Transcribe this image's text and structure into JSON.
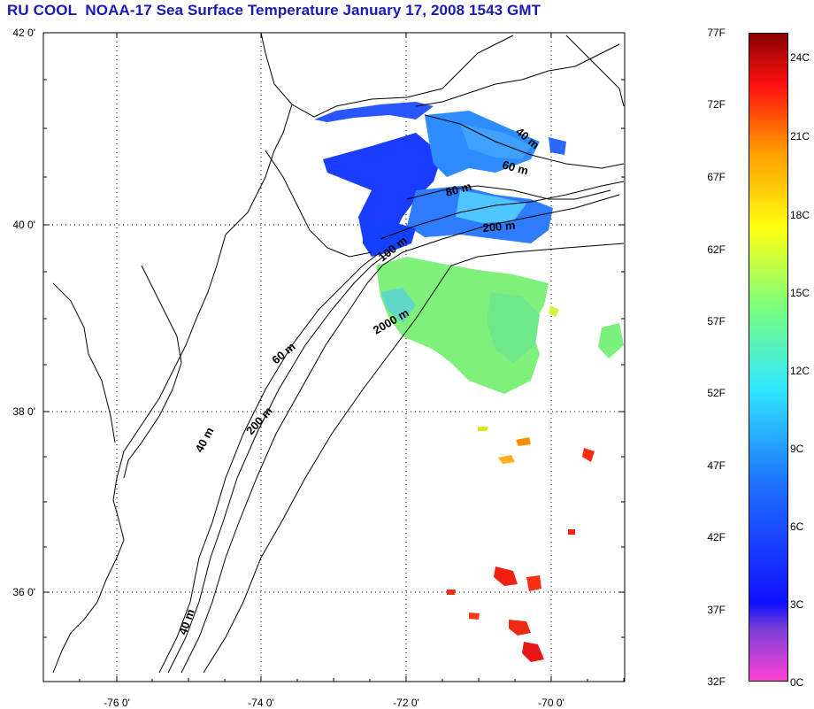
{
  "title": "RU COOL  NOAA-17 Sea Surface Temperature January 17, 2008 1543 GMT",
  "map": {
    "latitude_labels": [
      "42 0'",
      "40 0'",
      "38 0'",
      "36 0'"
    ],
    "longitude_labels": [
      "-76 0'",
      "-74 0'",
      "-72 0'",
      "-70 0'"
    ],
    "isobath_labels": [
      "40 m",
      "60 m",
      "80 m",
      "200 m",
      "100 m",
      "2000 m",
      "60 m",
      "200 m",
      "40 m",
      "40 m"
    ],
    "grid": true
  },
  "colorbar": {
    "fahrenheit_labels": [
      "77F",
      "72F",
      "67F",
      "62F",
      "57F",
      "52F",
      "47F",
      "42F",
      "37F",
      "32F"
    ],
    "celsius_labels": [
      "24C",
      "21C",
      "18C",
      "15C",
      "12C",
      "9C",
      "6C",
      "3C",
      "0C"
    ],
    "colors": [
      "#ff3fd2",
      "#1010ff",
      "#2fe6ff",
      "#7dff7a",
      "#ffff10",
      "#ff9a00",
      "#ff1010",
      "#8a0000"
    ]
  }
}
